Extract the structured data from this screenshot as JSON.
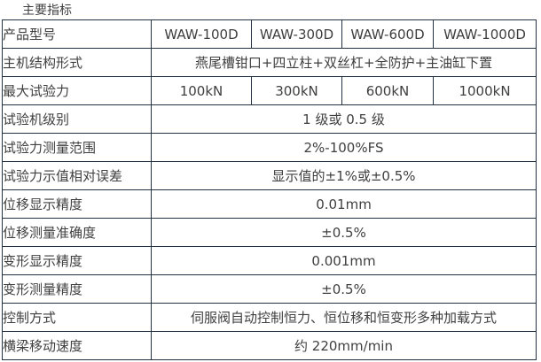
{
  "page": {
    "title": "主要指标"
  },
  "colors": {
    "border": "#233345",
    "text": "#3f3f3f",
    "background": "#ffffff"
  },
  "table": {
    "rows": [
      {
        "label": "产品型号",
        "values": [
          "WAW-100D",
          "WAW-300D",
          "WAW-600D",
          "WAW-1000D"
        ]
      },
      {
        "label": "主机结构形式",
        "merged": "燕尾槽钳口+四立柱+双丝杠+全防护+主油缸下置"
      },
      {
        "label": "最大试验力",
        "values": [
          "100kN",
          "300kN",
          "600kN",
          "1000kN"
        ]
      },
      {
        "label": "试验机级别",
        "merged": "1 级或 0.5 级"
      },
      {
        "label": "试验力测量范围",
        "merged": "2%-100%FS"
      },
      {
        "label": "试验力示值相对误差",
        "merged": "显示值的±1%或±0.5%"
      },
      {
        "label": "位移显示精度",
        "merged": "0.01mm"
      },
      {
        "label": "位移测量准确度",
        "merged": "±0.5%"
      },
      {
        "label": "变形显示精度",
        "merged": "0.001mm"
      },
      {
        "label": "变形测量精度",
        "merged": "±0.5%"
      },
      {
        "label": "控制方式",
        "merged": "伺服阀自动控制恒力、恒位移和恒变形多种加载方式"
      },
      {
        "label": "横梁移动速度",
        "merged": "约 220mm/min"
      }
    ]
  }
}
